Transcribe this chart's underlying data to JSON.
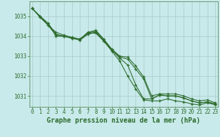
{
  "xlabel": "Graphe pression niveau de la mer (hPa)",
  "background_color": "#c8eaea",
  "grid_color": "#a8c8c8",
  "line_color": "#2d6b2d",
  "hours": [
    0,
    1,
    2,
    3,
    4,
    5,
    6,
    7,
    8,
    9,
    10,
    11,
    12,
    13,
    14,
    15,
    16,
    17,
    18,
    19,
    20,
    21,
    22,
    23
  ],
  "line1": [
    1035.4,
    1035.0,
    1034.65,
    1034.0,
    1034.0,
    1033.9,
    1033.85,
    1034.15,
    1034.15,
    1033.75,
    1033.3,
    1032.9,
    1032.55,
    1031.55,
    1030.85,
    1030.85,
    1031.05,
    1031.0,
    1031.0,
    1030.9,
    1030.75,
    1030.65,
    1030.7,
    1030.6
  ],
  "line2": [
    1035.4,
    1035.0,
    1034.65,
    1034.1,
    1034.0,
    1033.9,
    1033.85,
    1034.15,
    1034.25,
    1033.8,
    1033.35,
    1032.95,
    1032.85,
    1032.35,
    1031.85,
    1030.85,
    1031.05,
    1031.0,
    1031.0,
    1030.9,
    1030.75,
    1030.65,
    1030.7,
    1030.6
  ],
  "line3": [
    1035.4,
    1034.95,
    1034.55,
    1034.05,
    1034.0,
    1033.9,
    1033.8,
    1034.1,
    1034.2,
    1033.75,
    1033.25,
    1032.75,
    1032.0,
    1031.35,
    1030.8,
    1030.75,
    1030.75,
    1030.85,
    1030.75,
    1030.7,
    1030.6,
    1030.55,
    1030.65,
    1030.55
  ],
  "line4": [
    1035.4,
    1035.0,
    1034.55,
    1034.2,
    1034.05,
    1033.95,
    1033.85,
    1034.2,
    1034.3,
    1033.85,
    1033.35,
    1033.0,
    1032.95,
    1032.5,
    1031.95,
    1031.0,
    1031.1,
    1031.1,
    1031.1,
    1031.0,
    1030.85,
    1030.75,
    1030.8,
    1030.65
  ],
  "ylim_min": 1030.45,
  "ylim_max": 1035.75,
  "yticks": [
    1031,
    1032,
    1033,
    1034,
    1035
  ],
  "xticks": [
    0,
    1,
    2,
    3,
    4,
    5,
    6,
    7,
    8,
    9,
    10,
    11,
    12,
    13,
    14,
    15,
    16,
    17,
    18,
    19,
    20,
    21,
    22,
    23
  ],
  "marker": "+",
  "marker_size": 3.5,
  "marker_edge_width": 0.9,
  "line_width": 0.8,
  "xlabel_fontsize": 7,
  "tick_fontsize": 5.5,
  "xlabel_color": "#2d6b2d",
  "tick_color": "#2d6b2d",
  "spine_color": "#5a8a5a"
}
